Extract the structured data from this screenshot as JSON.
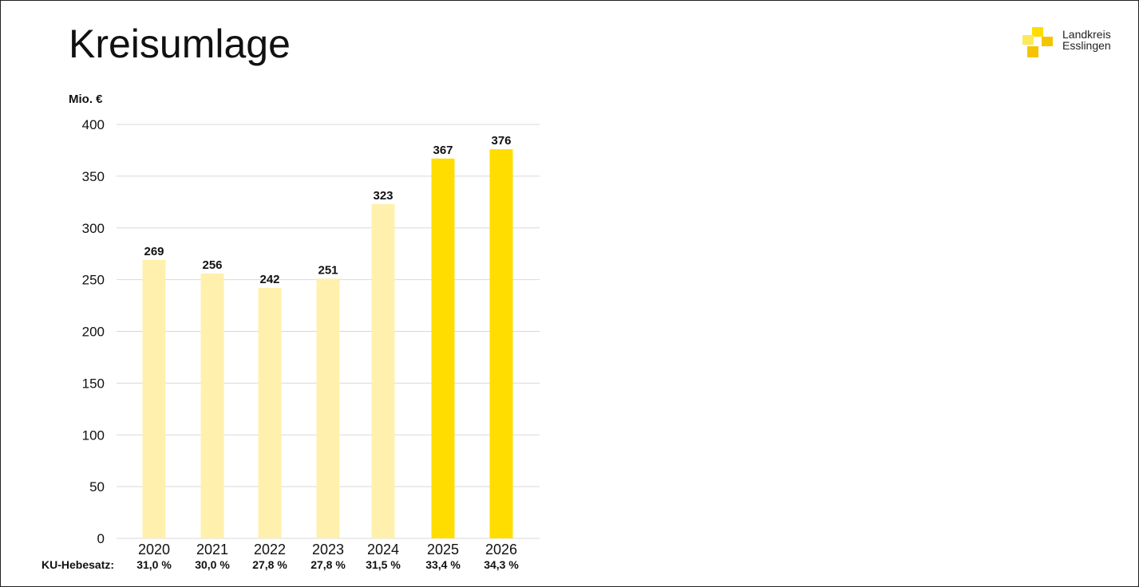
{
  "header": {
    "title": "Kreisumlage",
    "logo": {
      "line1": "Landkreis",
      "line2": "Esslingen",
      "colors": {
        "dark": "#F5C400",
        "light": "#FFE85A"
      }
    }
  },
  "colors": {
    "bar_past": "#FFF0AD",
    "bar_future": "#FFDD00",
    "grid": "#d9d9d9",
    "text": "#111111"
  },
  "chart_data": {
    "type": "bar",
    "title": "Kreisumlage",
    "ylabel": "Mio. €",
    "xlabel": "",
    "ylim": [
      0,
      400
    ],
    "yticks": [
      0,
      50,
      100,
      150,
      200,
      250,
      300,
      350,
      400
    ],
    "grid": true,
    "categories": [
      "2020",
      "2021",
      "2022",
      "2023",
      "2024",
      "2025",
      "2026"
    ],
    "values": [
      269,
      256,
      242,
      251,
      323,
      367,
      376
    ],
    "bar_styles": [
      "past",
      "past",
      "past",
      "past",
      "past",
      "future",
      "future"
    ],
    "hebesatz_label": "KU-Hebesatz:",
    "hebesatz": [
      "31,0 %",
      "30,0 %",
      "27,8 %",
      "27,8 %",
      "31,5 %",
      "33,4 %",
      "34,3 %"
    ]
  }
}
